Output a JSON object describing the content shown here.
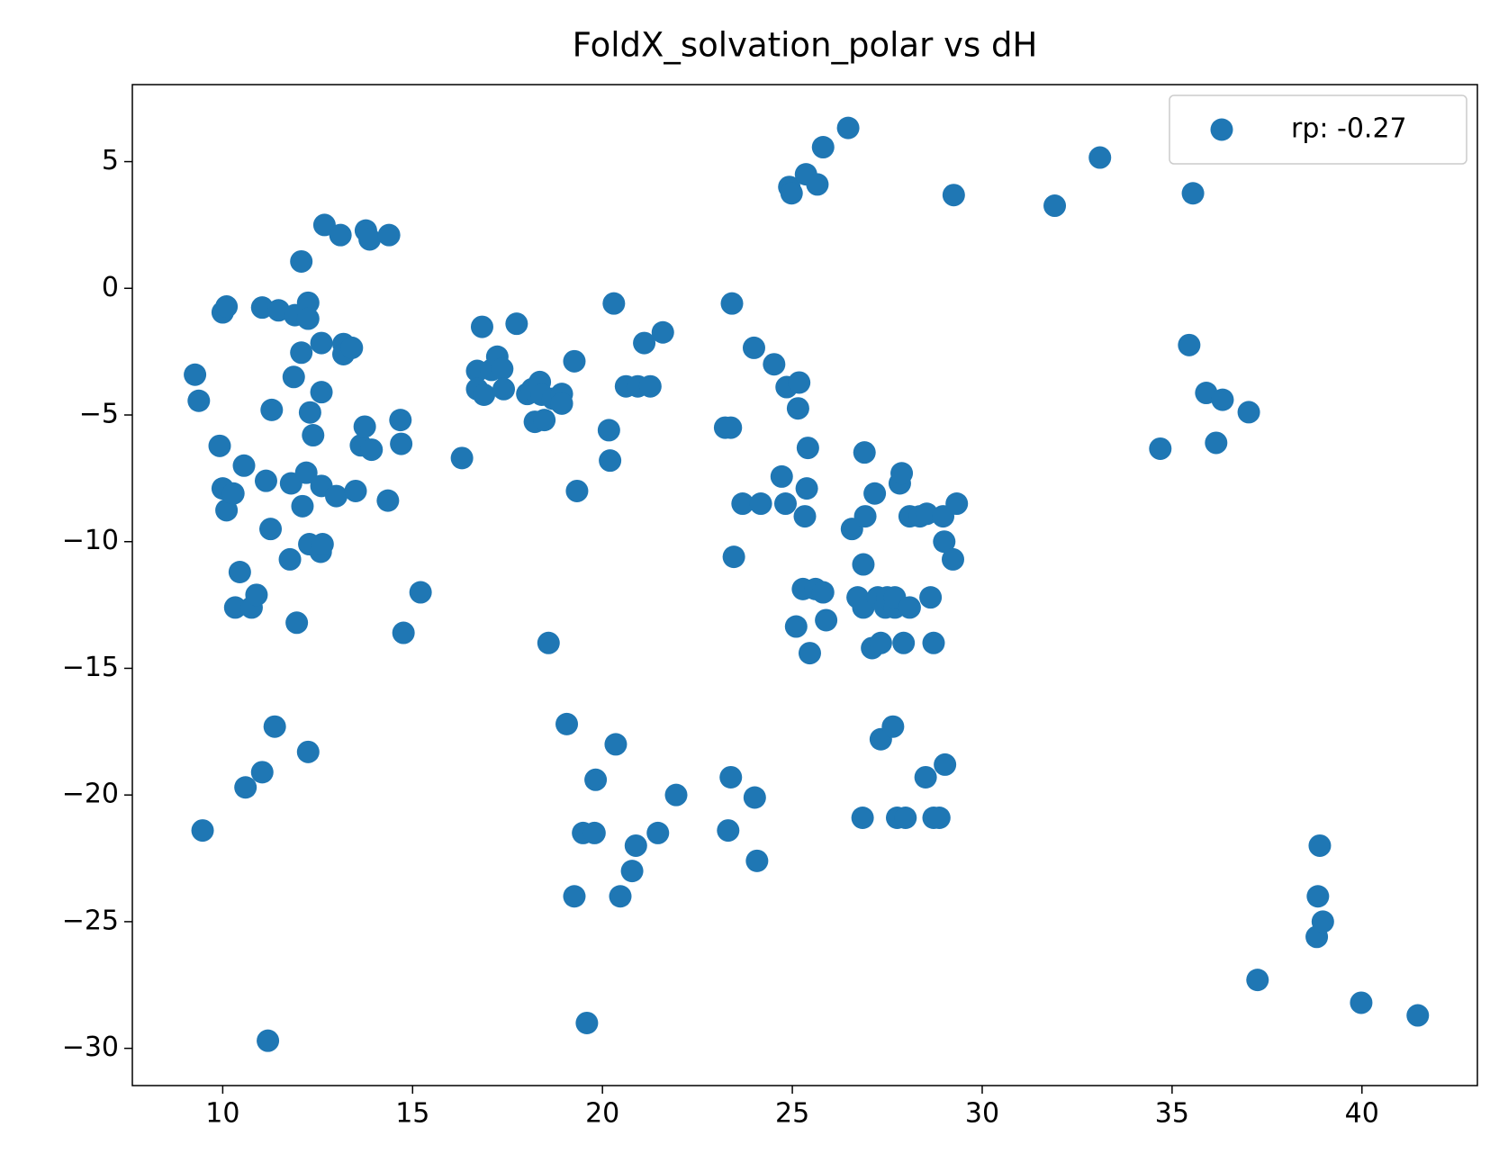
{
  "chart_data": {
    "type": "scatter",
    "title": "FoldX_solvation_polar vs dH",
    "xlim": [
      7.62,
      43.04
    ],
    "ylim": [
      -31.47,
      8.04
    ],
    "xticks": [
      10,
      15,
      20,
      25,
      30,
      35,
      40
    ],
    "yticks": [
      {
        "value": -30,
        "label": "−30"
      },
      {
        "value": -25,
        "label": "−25"
      },
      {
        "value": -20,
        "label": "−20"
      },
      {
        "value": -15,
        "label": "−15"
      },
      {
        "value": -10,
        "label": "−10"
      },
      {
        "value": -5,
        "label": "−5"
      },
      0,
      5
    ],
    "legend": "upper right",
    "series": [
      {
        "name": "rp: -0.27",
        "color": "#1f77b4",
        "x": [
          9.27,
          9.37,
          9.47,
          9.92,
          10,
          10.1,
          10,
          10.1,
          10.28,
          10.45,
          10.33,
          10.56,
          10.6,
          10.76,
          10.89,
          11.04,
          11.04,
          11.14,
          11.19,
          11.26,
          11.29,
          11.37,
          11.47,
          11.77,
          11.8,
          11.87,
          11.9,
          11.95,
          12.07,
          12.07,
          12.1,
          12.2,
          12.25,
          12.25,
          12.25,
          12.28,
          12.3,
          12.38,
          12.58,
          12.6,
          12.6,
          12.63,
          12.6,
          12.68,
          12.99,
          13.1,
          13.18,
          13.18,
          13.4,
          13.5,
          13.64,
          13.74,
          13.77,
          13.87,
          13.92,
          14.35,
          14.38,
          14.68,
          14.7,
          14.76,
          15.21,
          16.3,
          16.7,
          16.83,
          16.7,
          16.88,
          17.08,
          17.23,
          17.36,
          17.4,
          17.74,
          18.02,
          18.15,
          18.22,
          18.35,
          18.4,
          18.47,
          18.58,
          18.7,
          18.93,
          18.93,
          19.06,
          19.26,
          19.26,
          19.33,
          19.49,
          19.59,
          19.79,
          19.82,
          20.17,
          20.2,
          20.3,
          20.35,
          20.47,
          20.62,
          20.78,
          20.88,
          20.93,
          21.1,
          21.26,
          21.46,
          21.59,
          21.94,
          23.23,
          23.31,
          23.38,
          23.38,
          23.41,
          23.46,
          23.69,
          23.99,
          24.01,
          24.07,
          24.17,
          24.52,
          24.72,
          24.82,
          24.85,
          24.92,
          24.98,
          25.1,
          25.15,
          25.18,
          25.28,
          25.33,
          25.38,
          25.41,
          25.36,
          25.46,
          25.61,
          25.66,
          25.81,
          25.81,
          25.89,
          26.47,
          26.57,
          26.72,
          26.85,
          26.87,
          26.9,
          26.87,
          26.92,
          27.1,
          27.17,
          27.25,
          27.33,
          27.33,
          27.45,
          27.5,
          27.65,
          27.7,
          27.7,
          27.76,
          27.83,
          27.88,
          27.93,
          27.98,
          28.09,
          28.09,
          28.36,
          28.51,
          28.54,
          28.64,
          28.72,
          28.72,
          28.87,
          28.97,
          29.0,
          29.02,
          29.23,
          29.25,
          29.33,
          31.91,
          33.1,
          34.69,
          35.45,
          35.55,
          35.9,
          36.16,
          36.33,
          37.02,
          37.25,
          38.81,
          38.84,
          38.89,
          38.97,
          39.98,
          41.47
        ],
        "values": [
          -3.41,
          -4.44,
          -21.4,
          -6.22,
          -0.95,
          -0.72,
          -7.9,
          -8.76,
          -8.1,
          -11.2,
          -12.6,
          -7.0,
          -19.7,
          -12.6,
          -12.1,
          -0.76,
          -19.1,
          -7.6,
          -29.7,
          -9.5,
          -4.8,
          -17.3,
          -0.87,
          -10.7,
          -7.7,
          -3.5,
          -1.06,
          -13.2,
          1.06,
          -2.54,
          -8.6,
          -7.28,
          -0.57,
          -1.2,
          -18.3,
          -10.1,
          -4.9,
          -5.8,
          -10.4,
          -4.1,
          -2.16,
          -10.1,
          -7.8,
          2.5,
          -8.2,
          2.1,
          -2.2,
          -2.6,
          -2.35,
          -8.0,
          -6.2,
          -5.46,
          2.28,
          1.93,
          -6.37,
          -8.38,
          2.1,
          -5.2,
          -6.14,
          -13.6,
          -12.0,
          -6.7,
          -3.26,
          -1.52,
          -3.98,
          -4.2,
          -3.22,
          -2.7,
          -3.18,
          -3.98,
          -1.4,
          -4.17,
          -3.98,
          -5.27,
          -3.7,
          -4.2,
          -5.2,
          -14.0,
          -4.36,
          -4.17,
          -4.55,
          -17.2,
          -2.88,
          -24.0,
          -8.0,
          -21.5,
          -29.0,
          -21.5,
          -19.4,
          -5.6,
          -6.8,
          -0.6,
          -18.0,
          -24.0,
          -3.87,
          -23.0,
          -22.0,
          -3.87,
          -2.16,
          -3.87,
          -21.5,
          -1.74,
          -20.0,
          -5.5,
          -21.4,
          -5.5,
          -19.3,
          -0.6,
          -10.6,
          -8.5,
          -2.35,
          -20.1,
          -22.6,
          -8.5,
          -3.0,
          -7.43,
          -8.5,
          -3.9,
          4.0,
          3.75,
          -13.35,
          -4.74,
          -3.72,
          -11.87,
          -9.0,
          -7.9,
          -6.3,
          4.5,
          -14.4,
          -11.87,
          4.1,
          -12.0,
          5.57,
          -13.1,
          6.33,
          -9.5,
          -12.2,
          -20.9,
          -10.9,
          -6.48,
          -12.6,
          -9.0,
          -14.2,
          -8.1,
          -12.2,
          -14.0,
          -17.8,
          -12.6,
          -12.2,
          -17.3,
          -12.6,
          -12.2,
          -20.9,
          -7.7,
          -7.3,
          -14.0,
          -20.9,
          -12.6,
          -9.0,
          -9.0,
          -19.3,
          -8.9,
          -12.2,
          -14.0,
          -20.9,
          -20.9,
          -9.0,
          -10.0,
          -18.8,
          -10.7,
          3.68,
          -8.5,
          3.26,
          5.16,
          -6.33,
          -2.24,
          3.75,
          -4.13,
          -6.1,
          -4.4,
          -4.89,
          -27.3,
          -25.6,
          -24.0,
          -22.0,
          -25.0,
          -28.2,
          -28.7
        ]
      }
    ]
  }
}
